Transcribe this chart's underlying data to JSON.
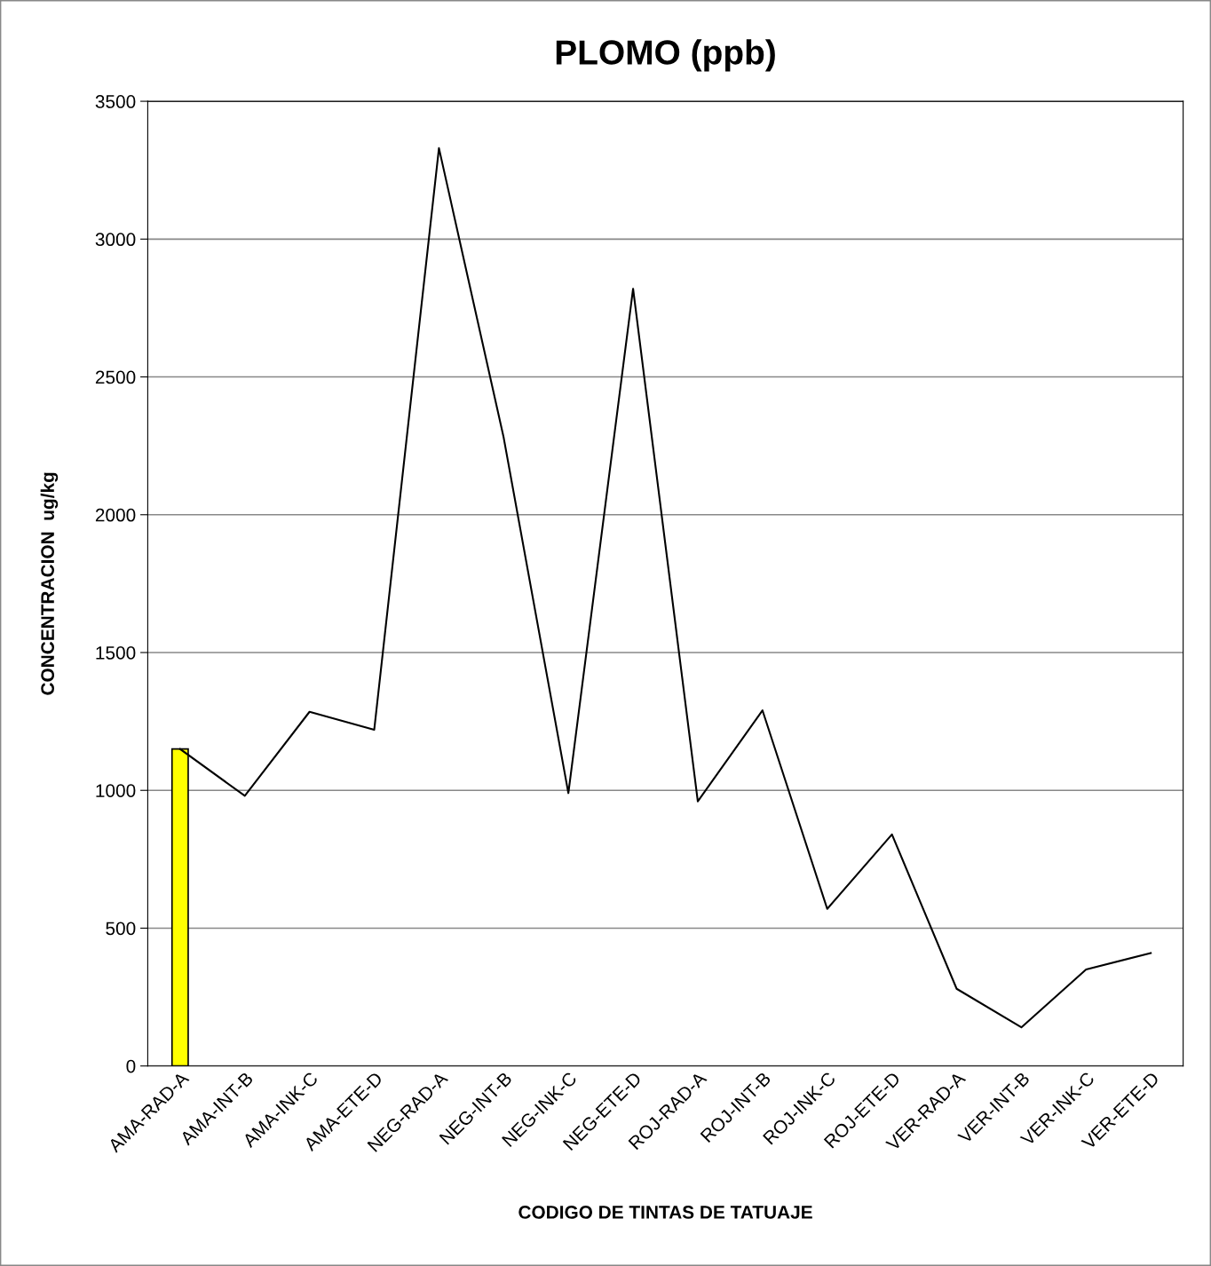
{
  "chart_data": {
    "type": "bar",
    "title": "PLOMO (ppb)",
    "xlabel": "CODIGO DE TINTAS DE TATUAJE",
    "ylabel": "CONCENTRACION  ug/kg",
    "categories": [
      "AMA-RAD-A",
      "AMA-INT-B",
      "AMA-INK-C",
      "AMA-ETE-D",
      "NEG-RAD-A",
      "NEG-INT-B",
      "NEG-INK-C",
      "NEG-ETE-D",
      "ROJ-RAD-A",
      "ROJ-INT-B",
      "ROJ-INK-C",
      "ROJ-ETE-D",
      "VER-RAD-A",
      "VER-INT-B",
      "VER-INK-C",
      "VER-ETE-D"
    ],
    "series": [
      {
        "color": "#ffff00",
        "values": [
          1150,
          null,
          null,
          null,
          null,
          null,
          null,
          null,
          null,
          null,
          null,
          null,
          null,
          null,
          null,
          null
        ]
      },
      {
        "type": "line",
        "color": "#000000",
        "values": [
          1150,
          980,
          1285,
          1220,
          3330,
          2280,
          990,
          2820,
          960,
          1290,
          570,
          840,
          280,
          140,
          350,
          410
        ]
      }
    ],
    "ylim": [
      0,
      3500
    ],
    "yticks": [
      0,
      500,
      1000,
      1500,
      2000,
      2500,
      3000,
      3500
    ],
    "grid": "y"
  }
}
